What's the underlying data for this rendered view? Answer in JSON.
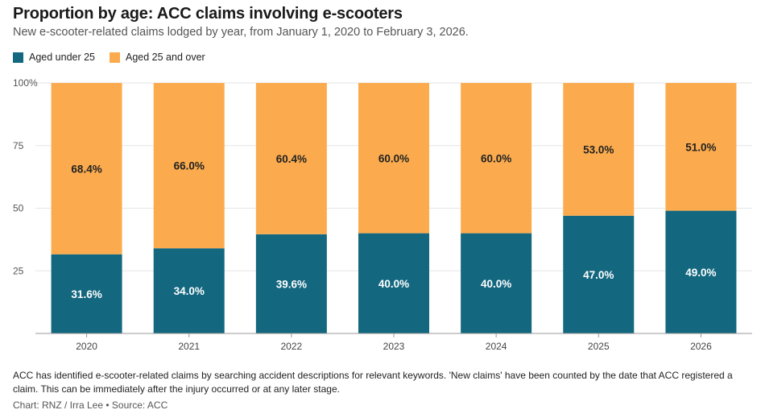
{
  "header": {
    "title": "Proportion by age: ACC claims involving e-scooters",
    "subtitle": "New e-scooter-related claims lodged by year, from January 1, 2020 to February 3, 2026."
  },
  "colors": {
    "under25": "#13677f",
    "over25": "#fbab4e",
    "axis": "#999999",
    "grid": "#e6e6e6"
  },
  "chart_data": {
    "type": "bar",
    "stacked": true,
    "categories": [
      "2020",
      "2021",
      "2022",
      "2023",
      "2024",
      "2025",
      "2026"
    ],
    "series": [
      {
        "name": "Aged under 25",
        "values": [
          31.6,
          34.0,
          39.6,
          40.0,
          40.0,
          47.0,
          49.0
        ],
        "labels": [
          "31.6%",
          "34.0%",
          "39.6%",
          "40.0%",
          "40.0%",
          "47.0%",
          "49.0%"
        ]
      },
      {
        "name": "Aged 25 and over",
        "values": [
          68.4,
          66.0,
          60.4,
          60.0,
          60.0,
          53.0,
          51.0
        ],
        "labels": [
          "68.4%",
          "66.0%",
          "60.4%",
          "60.0%",
          "60.0%",
          "53.0%",
          "51.0%"
        ]
      }
    ],
    "ylim": [
      0,
      100
    ],
    "yticks": [
      25,
      50,
      75,
      100
    ],
    "ytick_labels": [
      "25",
      "50",
      "75",
      "100%"
    ],
    "legend_position": "top-left"
  },
  "footer": {
    "notes": "ACC has identified e-scooter-related claims by searching accident descriptions for relevant keywords. 'New claims' have been counted by the date that ACC registered a claim. This can be immediately after the injury occurred or at any later stage.",
    "credit": "Chart: RNZ / Irra Lee • Source: ACC"
  }
}
